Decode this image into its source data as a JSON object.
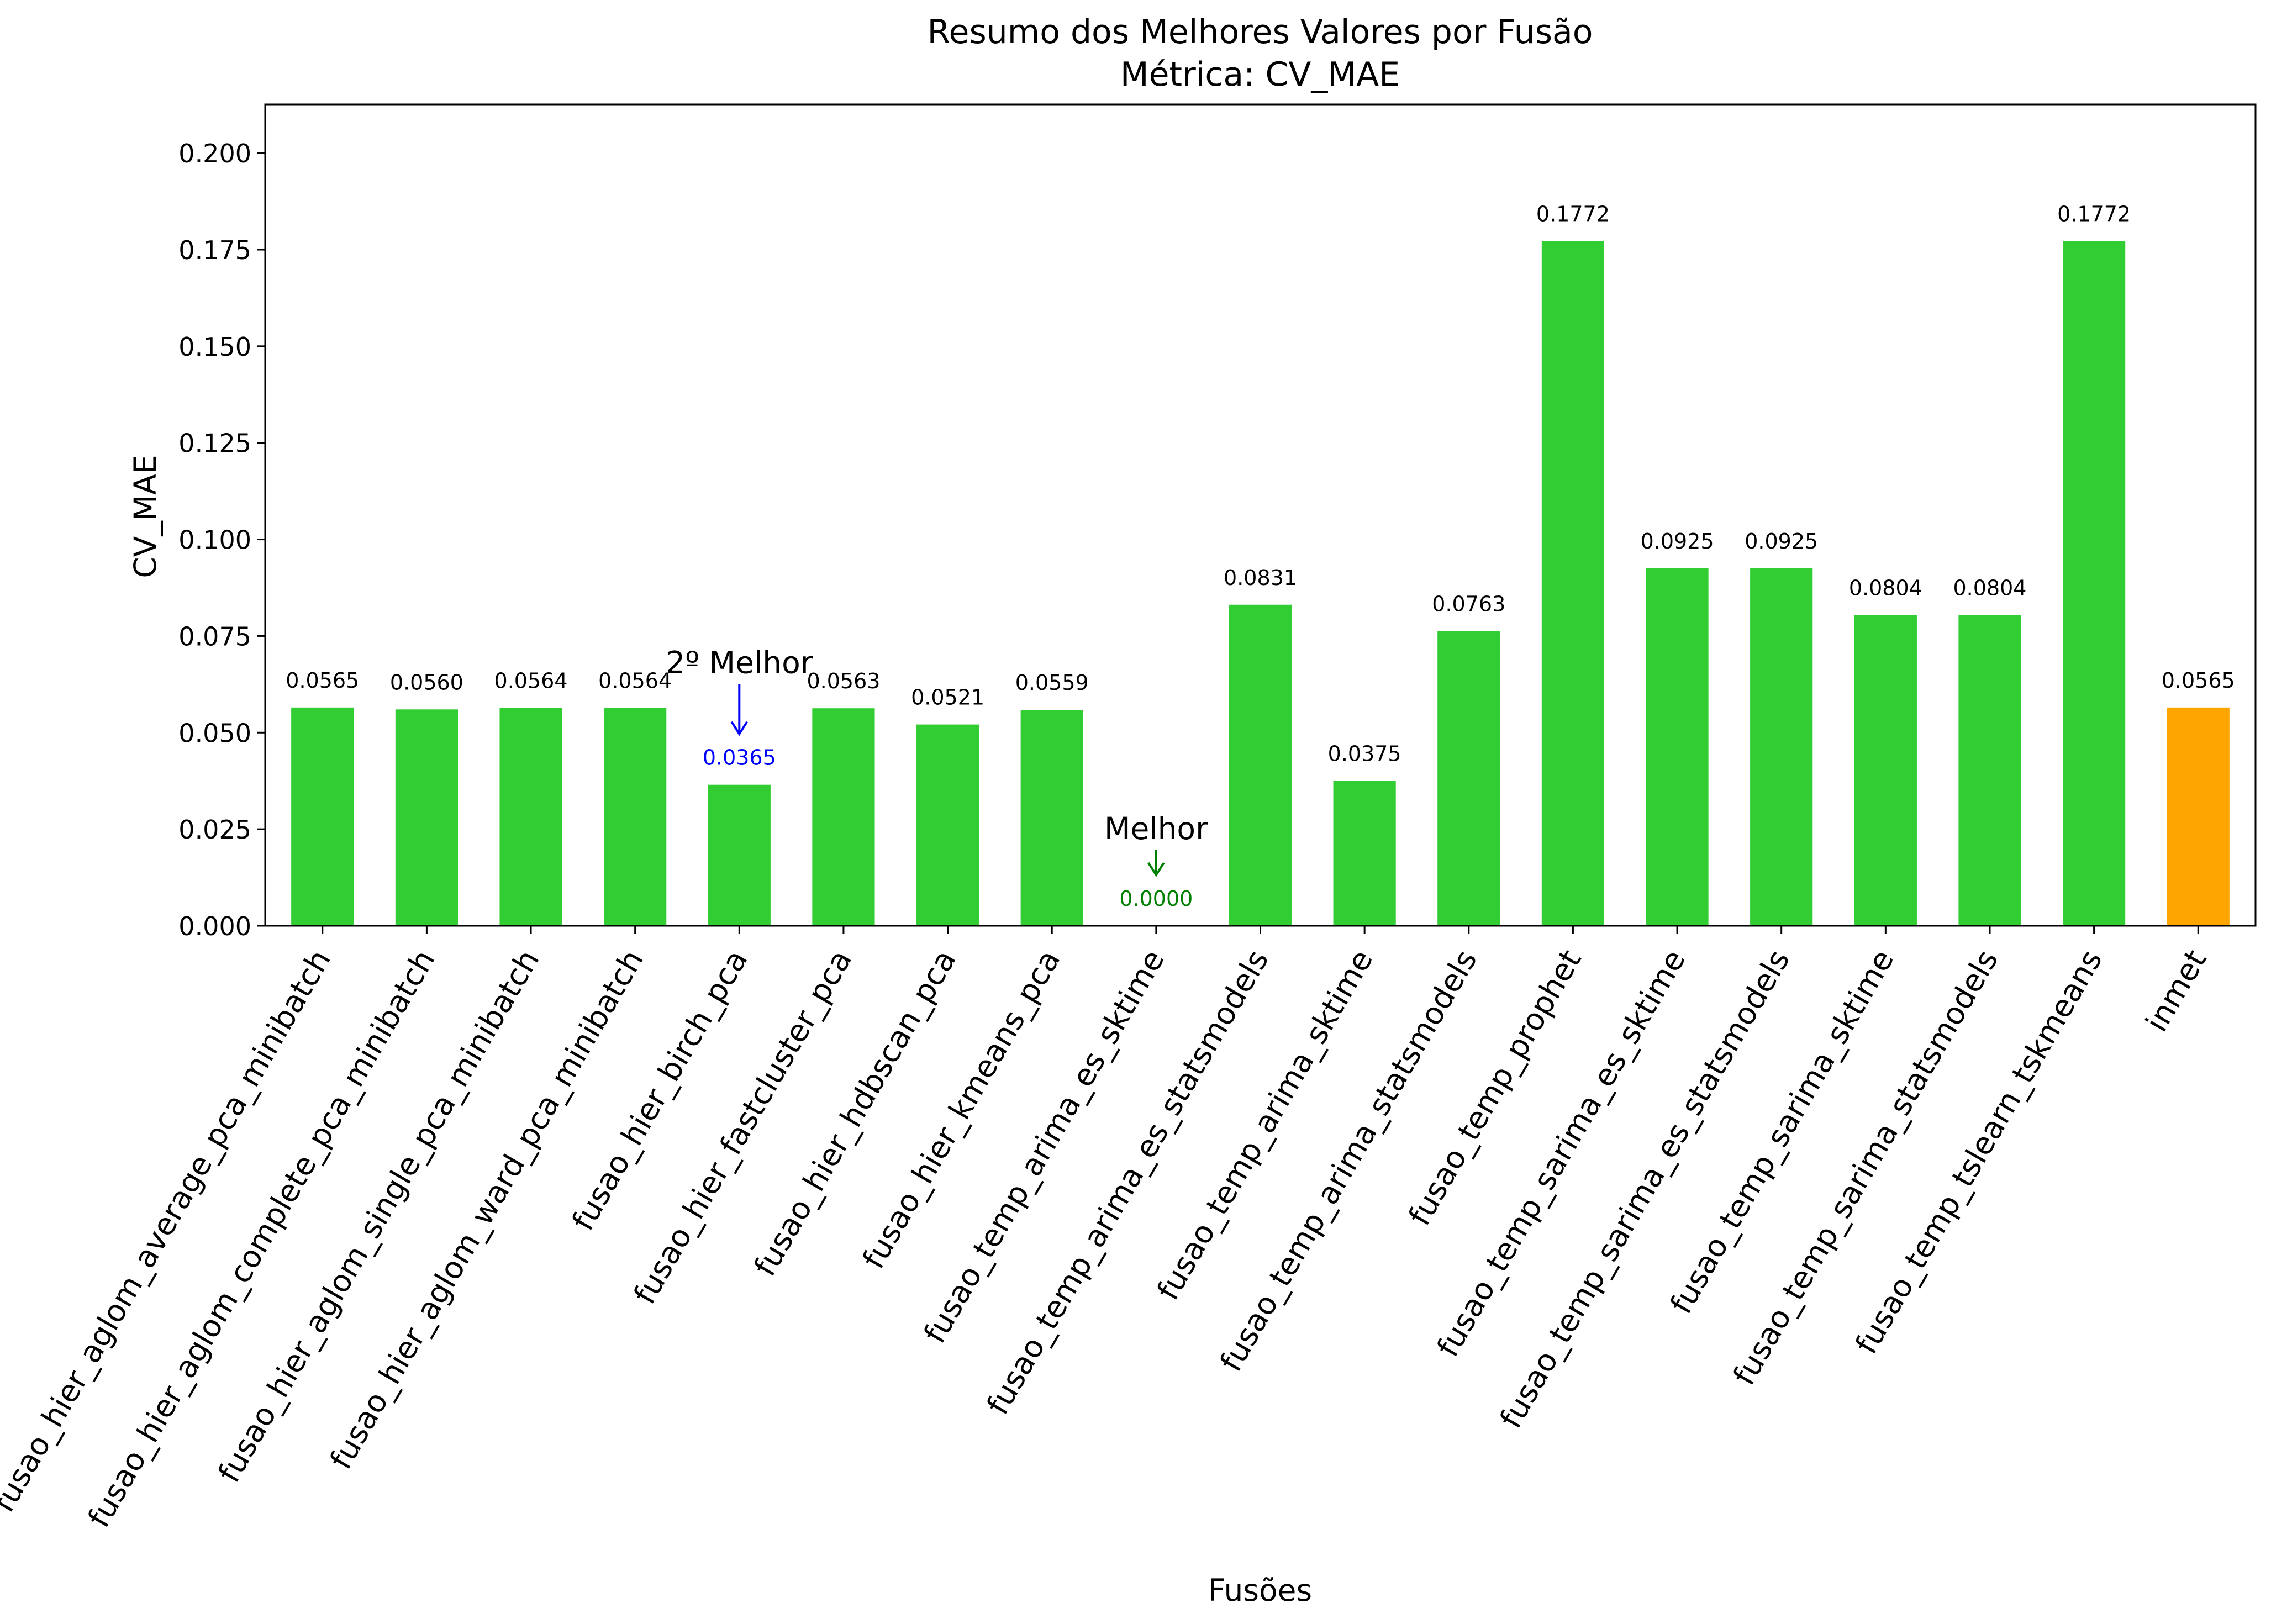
{
  "chart_data": {
    "type": "bar",
    "title": "Resumo dos Melhores Valores por Fusão",
    "subtitle": "Métrica: CV_MAE",
    "xlabel": "Fusões",
    "ylabel": "CV_MAE",
    "ylim": [
      0,
      0.2126
    ],
    "yticks": [
      0.0,
      0.025,
      0.05,
      0.075,
      0.1,
      0.125,
      0.15,
      0.175,
      0.2
    ],
    "ytick_labels": [
      "0.000",
      "0.025",
      "0.050",
      "0.075",
      "0.100",
      "0.125",
      "0.150",
      "0.175",
      "0.200"
    ],
    "grid": false,
    "categories": [
      "fusao_hier_aglom_average_pca_minibatch",
      "fusao_hier_aglom_complete_pca_minibatch",
      "fusao_hier_aglom_single_pca_minibatch",
      "fusao_hier_aglom_ward_pca_minibatch",
      "fusao_hier_birch_pca",
      "fusao_hier_fastcluster_pca",
      "fusao_hier_hdbscan_pca",
      "fusao_hier_kmeans_pca",
      "fusao_temp_arima_es_sktime",
      "fusao_temp_arima_es_statsmodels",
      "fusao_temp_arima_sktime",
      "fusao_temp_arima_statsmodels",
      "fusao_temp_prophet",
      "fusao_temp_sarima_es_sktime",
      "fusao_temp_sarima_es_statsmodels",
      "fusao_temp_sarima_sktime",
      "fusao_temp_sarima_statsmodels",
      "fusao_temp_tslearn_tskmeans",
      "inmet"
    ],
    "values": [
      0.0565,
      0.056,
      0.0564,
      0.0564,
      0.0365,
      0.0563,
      0.0521,
      0.0559,
      0.0,
      0.0831,
      0.0375,
      0.0763,
      0.1772,
      0.0925,
      0.0925,
      0.0804,
      0.0804,
      0.1772,
      0.0565
    ],
    "value_labels": [
      "0.0565",
      "0.0560",
      "0.0564",
      "0.0564",
      "0.0365",
      "0.0563",
      "0.0521",
      "0.0559",
      "0.0000",
      "0.0831",
      "0.0375",
      "0.0763",
      "0.1772",
      "0.0925",
      "0.0925",
      "0.0804",
      "0.0804",
      "0.1772",
      "0.0565"
    ],
    "bar_colors": [
      "#32cd32",
      "#32cd32",
      "#32cd32",
      "#32cd32",
      "#32cd32",
      "#32cd32",
      "#32cd32",
      "#32cd32",
      "#32cd32",
      "#32cd32",
      "#32cd32",
      "#32cd32",
      "#32cd32",
      "#32cd32",
      "#32cd32",
      "#32cd32",
      "#32cd32",
      "#32cd32",
      "#ffa500"
    ],
    "label_colors": [
      "#000000",
      "#000000",
      "#000000",
      "#000000",
      "#0000ff",
      "#000000",
      "#000000",
      "#000000",
      "#008000",
      "#000000",
      "#000000",
      "#000000",
      "#000000",
      "#000000",
      "#000000",
      "#000000",
      "#000000",
      "#000000",
      "#000000"
    ],
    "annotations": [
      {
        "text": "Melhor",
        "category_index": 8,
        "color": "#008000"
      },
      {
        "text": "2º Melhor",
        "category_index": 4,
        "color": "#0000ff"
      }
    ]
  }
}
